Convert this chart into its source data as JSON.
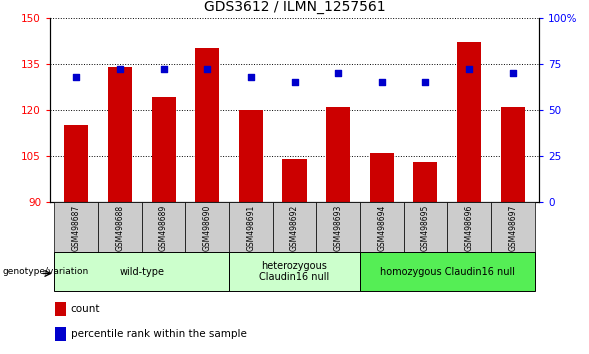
{
  "title": "GDS3612 / ILMN_1257561",
  "samples": [
    "GSM498687",
    "GSM498688",
    "GSM498689",
    "GSM498690",
    "GSM498691",
    "GSM498692",
    "GSM498693",
    "GSM498694",
    "GSM498695",
    "GSM498696",
    "GSM498697"
  ],
  "counts": [
    115,
    134,
    124,
    140,
    120,
    104,
    121,
    106,
    103,
    142,
    121
  ],
  "percentiles": [
    68,
    72,
    72,
    72,
    68,
    65,
    70,
    65,
    65,
    72,
    70
  ],
  "ylim_left": [
    90,
    150
  ],
  "ylim_right": [
    0,
    100
  ],
  "yticks_left": [
    90,
    105,
    120,
    135,
    150
  ],
  "yticks_right": [
    0,
    25,
    50,
    75,
    100
  ],
  "bar_color": "#cc0000",
  "dot_color": "#0000cc",
  "bar_width": 0.55,
  "grid_color": "black",
  "group_defs": [
    {
      "label": "wild-type",
      "cols": [
        0,
        1,
        2,
        3
      ],
      "color": "#ccffcc"
    },
    {
      "label": "heterozygous\nClaudin16 null",
      "cols": [
        4,
        5,
        6
      ],
      "color": "#ccffcc"
    },
    {
      "label": "homozygous Claudin16 null",
      "cols": [
        7,
        8,
        9,
        10
      ],
      "color": "#55ee55"
    }
  ],
  "legend_count": "count",
  "legend_percentile": "percentile rank within the sample",
  "title_fontsize": 10,
  "tick_fontsize": 7.5,
  "sample_fontsize": 5.5,
  "group_fontsize": 7,
  "geno_fontsize": 6.5
}
